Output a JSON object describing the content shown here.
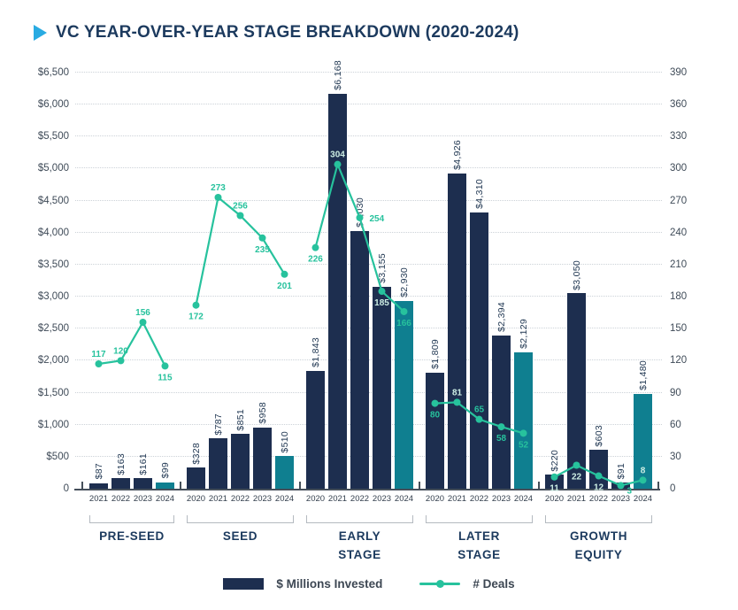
{
  "title": "VC YEAR-OVER-YEAR STAGE BREAKDOWN (2020-2024)",
  "colors": {
    "bar_navy": "#1d2e4f",
    "bar_teal_2024": "#0f7f90",
    "deals_line": "#27c29d",
    "deals_label_light": "#cdeee4",
    "title_navy": "#1c3a5e",
    "title_triangle_blue": "#29abe2"
  },
  "legend": [
    {
      "label": "$ Millions Invested",
      "type": "bar"
    },
    {
      "label": "# Deals",
      "type": "line"
    }
  ],
  "chart_data": {
    "type": "combo_bar_line",
    "title": "VC YEAR-OVER-YEAR STAGE BREAKDOWN (2020-2024)",
    "left_axis": {
      "unit": "$ Millions Invested",
      "ylim": [
        0,
        6500
      ],
      "tick_step": 500,
      "tick_labels": [
        "$6,500",
        "$6,000",
        "$5,500",
        "$5,000",
        "$4,500",
        "$4,000",
        "$3,500",
        "$3,000",
        "$2,500",
        "$2,000",
        "$1,500",
        "$1,000",
        "$500",
        "0"
      ]
    },
    "right_axis": {
      "unit": "# Deals",
      "ylim": [
        0,
        390
      ],
      "tick_step": 30,
      "tick_labels": [
        "390",
        "360",
        "330",
        "300",
        "270",
        "240",
        "210",
        "180",
        "150",
        "120",
        "90",
        "60",
        "30",
        "0"
      ]
    },
    "grid": "dotted horizontal",
    "legend_position": "bottom center",
    "groups": [
      {
        "stage": "PRE-SEED",
        "years": [
          "2021",
          "2022",
          "2023",
          "2024"
        ],
        "invested": [
          87,
          163,
          161,
          99
        ],
        "invested_labels": [
          "$87",
          "$163",
          "$161",
          "$99"
        ],
        "deals": [
          117,
          120,
          156,
          115
        ],
        "deals_label_side": [
          "above",
          "above",
          "above",
          "below"
        ],
        "deals_label_light": [
          false,
          false,
          false,
          false
        ]
      },
      {
        "stage": "SEED",
        "years": [
          "2020",
          "2021",
          "2022",
          "2023",
          "2024"
        ],
        "invested": [
          328,
          787,
          851,
          958,
          510
        ],
        "invested_labels": [
          "$328",
          "$787",
          "$851",
          "$958",
          "$510"
        ],
        "deals": [
          172,
          273,
          256,
          235,
          201
        ],
        "deals_label_side": [
          "below",
          "above",
          "above",
          "below",
          "below"
        ],
        "deals_label_light": [
          false,
          false,
          false,
          false,
          false
        ]
      },
      {
        "stage": "EARLY\nSTAGE",
        "years": [
          "2020",
          "2021",
          "2022",
          "2023",
          "2024"
        ],
        "invested": [
          1843,
          6168,
          4030,
          3155,
          2930
        ],
        "invested_labels": [
          "$1,843",
          "$6,168",
          "$4,030",
          "$3,155",
          "$2,930"
        ],
        "deals": [
          226,
          304,
          254,
          185,
          166
        ],
        "deals_label_side": [
          "below",
          "above",
          "right",
          "below",
          "below"
        ],
        "deals_label_light": [
          false,
          true,
          false,
          true,
          false
        ]
      },
      {
        "stage": "LATER\nSTAGE",
        "years": [
          "2020",
          "2021",
          "2022",
          "2023",
          "2024"
        ],
        "invested": [
          1809,
          4926,
          4310,
          2394,
          2129
        ],
        "invested_labels": [
          "$1,809",
          "$4,926",
          "$4,310",
          "$2,394",
          "$2,129"
        ],
        "deals": [
          80,
          81,
          65,
          58,
          52
        ],
        "deals_label_side": [
          "below",
          "above",
          "above",
          "below",
          "below"
        ],
        "deals_label_light": [
          false,
          true,
          false,
          false,
          false
        ]
      },
      {
        "stage": "GROWTH\nEQUITY",
        "years": [
          "2020",
          "2021",
          "2022",
          "2023",
          "2024"
        ],
        "invested": [
          220,
          3050,
          603,
          91,
          1480
        ],
        "invested_labels": [
          "$220",
          "$3,050",
          "$603",
          "$91",
          "$1,480"
        ],
        "deals": [
          11,
          22,
          12,
          3,
          8
        ],
        "deals_label_side": [
          "below",
          "below",
          "below",
          "right-below",
          "above"
        ],
        "deals_label_light": [
          true,
          true,
          true,
          false,
          true
        ]
      }
    ]
  }
}
